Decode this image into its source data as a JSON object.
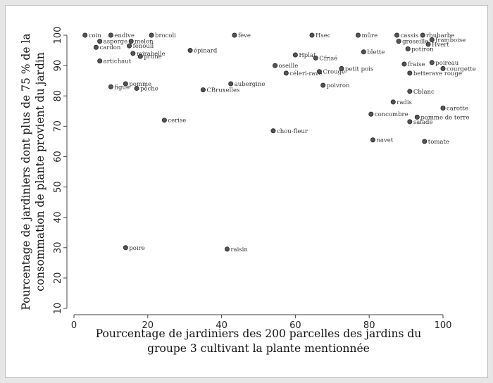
{
  "chart_data": {
    "type": "scatter",
    "title": "",
    "xlabel": [
      "Pourcentage de jardiniers des 200 parcelles des jardins du",
      "groupe 3 cultivant la plante mentionnée"
    ],
    "ylabel": [
      "Pourcentage de jardiniers dont plus de 75 % de la",
      "consommation de plante provient du jardin"
    ],
    "xlim": [
      0,
      100
    ],
    "ylim": [
      10,
      100
    ],
    "xticks": [
      "0",
      "20",
      "40",
      "60",
      "80",
      "100"
    ],
    "yticks": [
      "10",
      "20",
      "30",
      "40",
      "50",
      "60",
      "70",
      "80",
      "90",
      "100"
    ],
    "grid": false,
    "points": [
      {
        "label": "coin",
        "x": 3,
        "y": 100
      },
      {
        "label": "endive",
        "x": 10,
        "y": 100
      },
      {
        "label": "brocoli",
        "x": 21,
        "y": 100
      },
      {
        "label": "fève",
        "x": 43.5,
        "y": 100
      },
      {
        "label": "Hsec",
        "x": 64.5,
        "y": 100
      },
      {
        "label": "mûre",
        "x": 77,
        "y": 100
      },
      {
        "label": "cassis",
        "x": 87.5,
        "y": 100
      },
      {
        "label": "rhubarbe",
        "x": 94.5,
        "y": 100
      },
      {
        "label": "asperge",
        "x": 7,
        "y": 98
      },
      {
        "label": "melon",
        "x": 15.5,
        "y": 98
      },
      {
        "label": "groseille",
        "x": 88,
        "y": 98
      },
      {
        "label": "framboise",
        "x": 97,
        "y": 98.5
      },
      {
        "label": "cardon",
        "x": 6,
        "y": 96
      },
      {
        "label": "fenouil",
        "x": 15,
        "y": 96.5
      },
      {
        "label": "Hvert",
        "x": 96,
        "y": 97
      },
      {
        "label": "potiron",
        "x": 90.5,
        "y": 95.5
      },
      {
        "label": "épinard",
        "x": 31.5,
        "y": 95
      },
      {
        "label": "mirabelle",
        "x": 16,
        "y": 94
      },
      {
        "label": "blette",
        "x": 78.5,
        "y": 94.5
      },
      {
        "label": "prune",
        "x": 18,
        "y": 93
      },
      {
        "label": "Hplat",
        "x": 60,
        "y": 93.5
      },
      {
        "label": "Cfrisé",
        "x": 65.5,
        "y": 92.5
      },
      {
        "label": "artichaut",
        "x": 7,
        "y": 91.5
      },
      {
        "label": "poireau",
        "x": 97,
        "y": 91
      },
      {
        "label": "fraise",
        "x": 89.5,
        "y": 90.5
      },
      {
        "label": "oseille",
        "x": 54.5,
        "y": 90
      },
      {
        "label": "courgette",
        "x": 100,
        "y": 89
      },
      {
        "label": "petit pois",
        "x": 72.5,
        "y": 89
      },
      {
        "label": "Crouge",
        "x": 66.5,
        "y": 88
      },
      {
        "label": "céleri-rave",
        "x": 57.5,
        "y": 87.5
      },
      {
        "label": "betterave rouge",
        "x": 91,
        "y": 87.5
      },
      {
        "label": "aubergine",
        "x": 42.5,
        "y": 84
      },
      {
        "label": "pomme",
        "x": 14,
        "y": 84
      },
      {
        "label": "poivron",
        "x": 67.5,
        "y": 83.5
      },
      {
        "label": "figue",
        "x": 10,
        "y": 83
      },
      {
        "label": "pêche",
        "x": 17,
        "y": 82.5
      },
      {
        "label": "CBruxelles",
        "x": 35,
        "y": 82
      },
      {
        "label": "Cblanc",
        "x": 91,
        "y": 81.5
      },
      {
        "label": "radis",
        "x": 86.5,
        "y": 78
      },
      {
        "label": "carotte",
        "x": 100,
        "y": 76
      },
      {
        "label": "concombre",
        "x": 80.5,
        "y": 74
      },
      {
        "label": "pomme de terre",
        "x": 93,
        "y": 73
      },
      {
        "label": "cerise",
        "x": 24.5,
        "y": 72
      },
      {
        "label": "salade",
        "x": 91,
        "y": 71.5
      },
      {
        "label": "chou-fleur",
        "x": 54,
        "y": 68.5
      },
      {
        "label": "navet",
        "x": 81,
        "y": 65.5
      },
      {
        "label": "tomate",
        "x": 95,
        "y": 65
      },
      {
        "label": "poire",
        "x": 14,
        "y": 30
      },
      {
        "label": "raisin",
        "x": 41.5,
        "y": 29.5
      }
    ]
  }
}
